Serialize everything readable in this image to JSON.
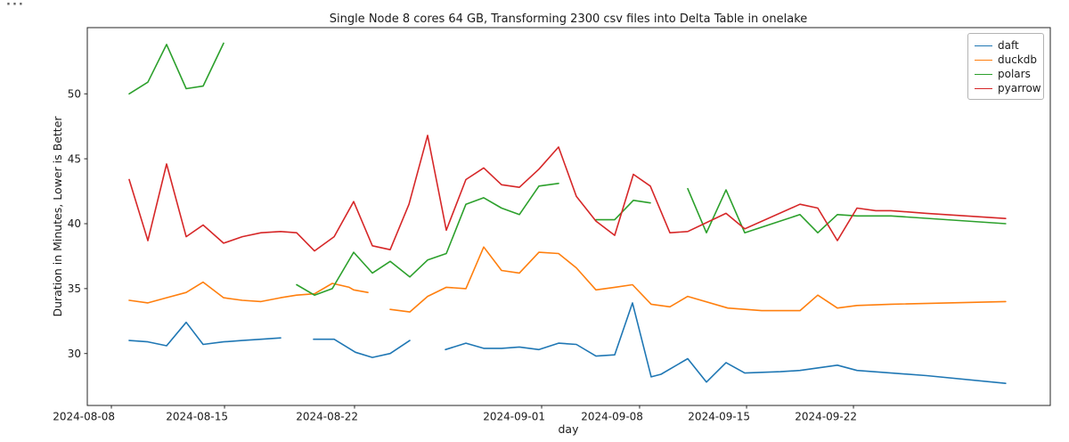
{
  "page": {
    "overflow_indicator": "···"
  },
  "chart_data": {
    "type": "line",
    "title": "Single Node 8 cores 64 GB, Transforming 2300 csv files into Delta Table in onelake",
    "xlabel": "day",
    "ylabel": "Duration in Minutes, Lower is Better",
    "ylim": [
      26,
      55.1
    ],
    "grid": false,
    "legend_position": "upper right",
    "x_unit": "fraction of plot width; x axis is categorical daily dates 2024-08-10 .. 2024-09-26 with missing days (line gaps)",
    "y_unit": "minutes",
    "y_ticks": [
      {
        "label": "30",
        "v": 30
      },
      {
        "label": "35",
        "v": 35
      },
      {
        "label": "40",
        "v": 40
      },
      {
        "label": "45",
        "v": 45
      },
      {
        "label": "50",
        "v": 50
      }
    ],
    "x_ticks": [
      {
        "label": "2024-08-08",
        "f": 0.025
      },
      {
        "label": "2024-08-15",
        "f": 0.1425
      },
      {
        "label": "2024-08-22",
        "f": 0.2775
      },
      {
        "label": "2024-09-01",
        "f": 0.4718
      },
      {
        "label": "2024-09-08",
        "f": 0.5735
      },
      {
        "label": "2024-09-15",
        "f": 0.6846
      },
      {
        "label": "2024-09-22",
        "f": 0.7956
      }
    ],
    "series": [
      {
        "name": "daft",
        "color": "#1f77b4",
        "segments": [
          [
            [
              0.0435,
              31.0
            ],
            [
              0.0629,
              30.9
            ],
            [
              0.0823,
              30.6
            ],
            [
              0.1027,
              32.4
            ],
            [
              0.1203,
              30.7
            ],
            [
              0.1415,
              30.9
            ],
            [
              0.161,
              31.0
            ],
            [
              0.1804,
              31.1
            ],
            [
              0.2007,
              31.2
            ]
          ],
          [
            [
              0.235,
              31.1
            ],
            [
              0.2563,
              31.1
            ],
            [
              0.2784,
              30.1
            ],
            [
              0.296,
              29.7
            ],
            [
              0.3145,
              30.0
            ],
            [
              0.3349,
              31.0
            ]
          ],
          [
            [
              0.3719,
              30.3
            ],
            [
              0.3932,
              30.8
            ],
            [
              0.4117,
              30.4
            ],
            [
              0.4302,
              30.4
            ],
            [
              0.4487,
              30.5
            ],
            [
              0.469,
              30.3
            ],
            [
              0.4894,
              30.8
            ],
            [
              0.5079,
              30.7
            ],
            [
              0.5282,
              29.8
            ],
            [
              0.5476,
              29.9
            ],
            [
              0.5661,
              33.9
            ],
            [
              0.5856,
              28.2
            ],
            [
              0.5957,
              28.4
            ],
            [
              0.6235,
              29.6
            ],
            [
              0.6429,
              27.8
            ],
            [
              0.6633,
              29.3
            ],
            [
              0.6827,
              28.5
            ],
            [
              0.7197,
              28.6
            ],
            [
              0.7401,
              28.7
            ],
            [
              0.7789,
              29.1
            ],
            [
              0.7993,
              28.7
            ],
            [
              0.8714,
              28.3
            ],
            [
              0.9537,
              27.7
            ]
          ]
        ]
      },
      {
        "name": "duckdb",
        "color": "#ff7f0e",
        "segments": [
          [
            [
              0.0435,
              34.1
            ],
            [
              0.0629,
              33.9
            ],
            [
              0.0823,
              34.3
            ],
            [
              0.1027,
              34.7
            ],
            [
              0.1203,
              35.5
            ],
            [
              0.1415,
              34.3
            ],
            [
              0.161,
              34.1
            ],
            [
              0.1804,
              34.0
            ],
            [
              0.2007,
              34.3
            ],
            [
              0.2174,
              34.5
            ],
            [
              0.2359,
              34.6
            ],
            [
              0.2544,
              35.4
            ],
            [
              0.272,
              35.1
            ],
            [
              0.2766,
              34.9
            ],
            [
              0.2914,
              34.7
            ]
          ],
          [
            [
              0.3145,
              33.4
            ],
            [
              0.3349,
              33.2
            ],
            [
              0.3534,
              34.4
            ],
            [
              0.3728,
              35.1
            ],
            [
              0.3932,
              35.0
            ],
            [
              0.4117,
              38.2
            ],
            [
              0.4302,
              36.4
            ],
            [
              0.4487,
              36.2
            ],
            [
              0.469,
              37.8
            ],
            [
              0.4894,
              37.7
            ],
            [
              0.5079,
              36.6
            ],
            [
              0.5282,
              34.9
            ],
            [
              0.5476,
              35.1
            ],
            [
              0.5661,
              35.3
            ],
            [
              0.5856,
              33.8
            ],
            [
              0.605,
              33.6
            ],
            [
              0.6235,
              34.4
            ],
            [
              0.6651,
              33.5
            ],
            [
              0.7003,
              33.3
            ],
            [
              0.7197,
              33.3
            ],
            [
              0.7401,
              33.3
            ],
            [
              0.7586,
              34.5
            ],
            [
              0.7789,
              33.5
            ],
            [
              0.7993,
              33.7
            ],
            [
              0.8344,
              33.8
            ],
            [
              0.9537,
              34.0
            ]
          ]
        ]
      },
      {
        "name": "polars",
        "color": "#2ca02c",
        "segments": [
          [
            [
              0.0435,
              50.0
            ],
            [
              0.0629,
              50.9
            ],
            [
              0.0823,
              53.8
            ],
            [
              0.1027,
              50.4
            ],
            [
              0.1203,
              50.6
            ],
            [
              0.1415,
              53.9
            ]
          ],
          [
            [
              0.2174,
              35.3
            ],
            [
              0.2359,
              34.5
            ],
            [
              0.2544,
              35.0
            ],
            [
              0.2766,
              37.8
            ],
            [
              0.296,
              36.2
            ],
            [
              0.3145,
              37.1
            ],
            [
              0.3349,
              35.9
            ],
            [
              0.3534,
              37.2
            ],
            [
              0.3728,
              37.7
            ],
            [
              0.3932,
              41.5
            ],
            [
              0.4117,
              42.0
            ],
            [
              0.4302,
              41.2
            ],
            [
              0.4487,
              40.7
            ],
            [
              0.469,
              42.9
            ],
            [
              0.4894,
              43.1
            ]
          ],
          [
            [
              0.5282,
              40.3
            ],
            [
              0.5476,
              40.3
            ],
            [
              0.5671,
              41.8
            ],
            [
              0.5846,
              41.6
            ]
          ],
          [
            [
              0.6235,
              42.7
            ],
            [
              0.6429,
              39.3
            ],
            [
              0.6633,
              42.6
            ],
            [
              0.6827,
              39.3
            ],
            [
              0.7401,
              40.7
            ],
            [
              0.7586,
              39.3
            ],
            [
              0.7789,
              40.7
            ],
            [
              0.7993,
              40.6
            ],
            [
              0.8344,
              40.6
            ],
            [
              0.9537,
              40.0
            ]
          ]
        ]
      },
      {
        "name": "pyarrow",
        "color": "#d62728",
        "segments": [
          [
            [
              0.0435,
              43.4
            ],
            [
              0.0629,
              38.7
            ],
            [
              0.0823,
              44.6
            ],
            [
              0.1027,
              39.0
            ],
            [
              0.1203,
              39.9
            ],
            [
              0.1415,
              38.5
            ],
            [
              0.161,
              39.0
            ],
            [
              0.1804,
              39.3
            ],
            [
              0.2007,
              39.4
            ],
            [
              0.2174,
              39.3
            ],
            [
              0.2359,
              37.9
            ],
            [
              0.2563,
              39.0
            ],
            [
              0.2766,
              41.7
            ],
            [
              0.296,
              38.3
            ],
            [
              0.3145,
              38.0
            ],
            [
              0.334,
              41.5
            ],
            [
              0.3534,
              46.8
            ],
            [
              0.3728,
              39.5
            ],
            [
              0.3932,
              43.4
            ],
            [
              0.4117,
              44.3
            ],
            [
              0.4302,
              43.0
            ],
            [
              0.4487,
              42.8
            ],
            [
              0.469,
              44.2
            ],
            [
              0.4894,
              45.9
            ],
            [
              0.5079,
              42.1
            ],
            [
              0.5282,
              40.2
            ],
            [
              0.5476,
              39.1
            ],
            [
              0.5671,
              43.8
            ],
            [
              0.5846,
              42.9
            ],
            [
              0.605,
              39.3
            ],
            [
              0.6235,
              39.4
            ],
            [
              0.6633,
              40.8
            ],
            [
              0.6827,
              39.6
            ],
            [
              0.7401,
              41.5
            ],
            [
              0.7586,
              41.2
            ],
            [
              0.7789,
              38.7
            ],
            [
              0.7993,
              41.2
            ],
            [
              0.8187,
              41.0
            ],
            [
              0.8344,
              41.0
            ],
            [
              0.8714,
              40.8
            ],
            [
              0.9537,
              40.4
            ]
          ]
        ]
      }
    ],
    "legend": [
      {
        "label": "daft",
        "color": "#1f77b4"
      },
      {
        "label": "duckdb",
        "color": "#ff7f0e"
      },
      {
        "label": "polars",
        "color": "#2ca02c"
      },
      {
        "label": "pyarrow",
        "color": "#d62728"
      }
    ]
  }
}
